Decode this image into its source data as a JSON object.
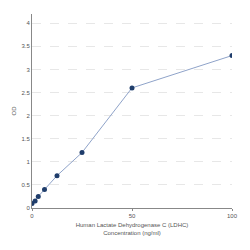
{
  "chart_data": {
    "type": "line",
    "x_label": [
      "Human Lactate Dehydrogenase C (LDHC)",
      "Concentration (ng/ml)"
    ],
    "y_label": "OD",
    "x": [
      0,
      1.56,
      3.125,
      6.25,
      12.5,
      25,
      50,
      100
    ],
    "series": [
      {
        "color": "#1f3d6b",
        "values": [
          0.1,
          0.15,
          0.25,
          0.4,
          0.7,
          1.2,
          2.6,
          3.3
        ]
      }
    ],
    "marker": "circle",
    "xlim": [
      0,
      100
    ],
    "xticks": [
      0,
      50,
      100
    ],
    "ylim": [
      0,
      4.2
    ],
    "yticks": [
      0,
      0.5,
      1,
      1.5,
      2,
      2.5,
      3,
      3.5,
      4
    ],
    "grid": true
  }
}
